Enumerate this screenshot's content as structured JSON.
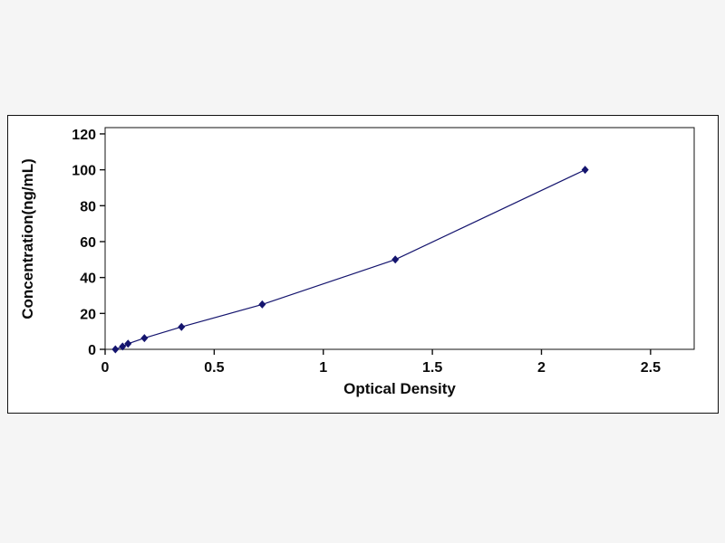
{
  "page": {
    "background_color": "#f5f5f5",
    "panel_background": "#ffffff",
    "panel_border_color": "#111111"
  },
  "chart_data": {
    "type": "line",
    "title": "",
    "xlabel": "Optical Density",
    "ylabel": "Concentration(ng/mL)",
    "x": [
      0.047,
      0.08,
      0.105,
      0.18,
      0.35,
      0.72,
      1.33,
      2.2
    ],
    "y": [
      0,
      1.56,
      3.12,
      6.25,
      12.5,
      25,
      50,
      100
    ],
    "xlim": [
      0,
      2.7
    ],
    "ylim": [
      0,
      123.5
    ],
    "x_ticks": [
      0,
      0.5,
      1,
      1.5,
      2,
      2.5
    ],
    "x_tick_labels": [
      "0",
      "0.5",
      "1",
      "1.5",
      "2",
      "2.5"
    ],
    "y_ticks": [
      0,
      20,
      40,
      60,
      80,
      100,
      120
    ],
    "y_tick_labels": [
      "0",
      "20",
      "40",
      "60",
      "80",
      "100",
      "120"
    ],
    "line_color": "#14146e",
    "marker": "diamond",
    "marker_color": "#14146e",
    "grid": false,
    "legend_position": "none"
  }
}
